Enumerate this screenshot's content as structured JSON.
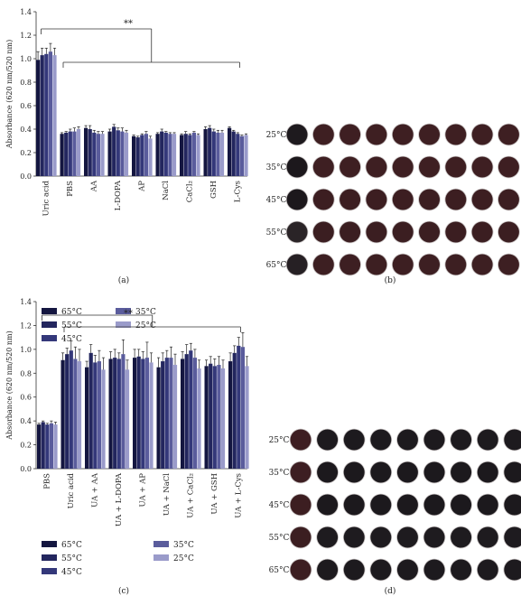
{
  "chart_data": [
    {
      "panel": "(a)",
      "type": "bar",
      "ylabel": "Absorbance (620 nm/520 nm)",
      "ylim": [
        0,
        1.4
      ],
      "yticks": [
        "0.0",
        "0.2",
        "0.4",
        "0.6",
        "0.8",
        "1.0",
        "1.2",
        "1.4"
      ],
      "categories": [
        "Uric acid",
        "PBS",
        "AA",
        "L-DOPA",
        "AP",
        "NaCl",
        "CaCl₂",
        "GSH",
        "L-Cys"
      ],
      "significance": "**",
      "series": [
        {
          "name": "65°C",
          "color": "#141640",
          "values": [
            0.99,
            0.36,
            0.41,
            0.38,
            0.34,
            0.36,
            0.35,
            0.4,
            0.41
          ],
          "errors": [
            0.07,
            0.01,
            0.02,
            0.02,
            0.01,
            0.01,
            0.01,
            0.02,
            0.01
          ]
        },
        {
          "name": "55°C",
          "color": "#23265e",
          "values": [
            1.03,
            0.37,
            0.4,
            0.42,
            0.33,
            0.38,
            0.36,
            0.41,
            0.38
          ],
          "errors": [
            0.06,
            0.01,
            0.03,
            0.02,
            0.01,
            0.02,
            0.02,
            0.02,
            0.01
          ]
        },
        {
          "name": "45°C",
          "color": "#34387a",
          "values": [
            1.04,
            0.38,
            0.37,
            0.39,
            0.35,
            0.37,
            0.35,
            0.38,
            0.36
          ],
          "errors": [
            0.05,
            0.02,
            0.02,
            0.02,
            0.01,
            0.01,
            0.01,
            0.02,
            0.01
          ]
        },
        {
          "name": "35°C",
          "color": "#5a5c9c",
          "values": [
            1.06,
            0.38,
            0.36,
            0.38,
            0.36,
            0.36,
            0.37,
            0.37,
            0.34
          ],
          "errors": [
            0.07,
            0.03,
            0.02,
            0.03,
            0.02,
            0.01,
            0.01,
            0.02,
            0.01
          ]
        },
        {
          "name": "25°C",
          "color": "#9a9bca",
          "values": [
            1.03,
            0.4,
            0.36,
            0.37,
            0.32,
            0.36,
            0.35,
            0.37,
            0.35
          ],
          "errors": [
            0.06,
            0.02,
            0.02,
            0.02,
            0.02,
            0.01,
            0.01,
            0.02,
            0.01
          ]
        }
      ]
    },
    {
      "panel": "(c)",
      "type": "bar",
      "ylabel": "Absorbance (620 nm/520 nm)",
      "ylim": [
        0,
        1.4
      ],
      "yticks": [
        "0.0",
        "0.2",
        "0.4",
        "0.6",
        "0.8",
        "1.0",
        "1.2",
        "1.4"
      ],
      "categories": [
        "PBS",
        "Uric acid",
        "UA + AA",
        "UA + L-DOPA",
        "UA + AP",
        "UA + NaCl",
        "UA + CaCl₂",
        "UA + GSH",
        "UA + L-Cys"
      ],
      "significance": "**",
      "series": [
        {
          "name": "65°C",
          "color": "#141640",
          "values": [
            0.37,
            0.91,
            0.85,
            0.92,
            0.93,
            0.85,
            0.92,
            0.86,
            0.9
          ],
          "errors": [
            0.01,
            0.06,
            0.05,
            0.06,
            0.07,
            0.08,
            0.06,
            0.05,
            0.07
          ]
        },
        {
          "name": "55°C",
          "color": "#23265e",
          "values": [
            0.39,
            0.96,
            0.97,
            0.93,
            0.94,
            0.9,
            0.96,
            0.88,
            0.97
          ],
          "errors": [
            0.01,
            0.05,
            0.07,
            0.07,
            0.06,
            0.07,
            0.08,
            0.06,
            0.06
          ]
        },
        {
          "name": "45°C",
          "color": "#34387a",
          "values": [
            0.37,
            0.99,
            0.89,
            0.92,
            0.92,
            0.93,
            0.99,
            0.86,
            1.03
          ],
          "errors": [
            0.01,
            0.08,
            0.06,
            0.05,
            0.06,
            0.06,
            0.06,
            0.06,
            0.07
          ]
        },
        {
          "name": "35°C",
          "color": "#5a5c9c",
          "values": [
            0.38,
            0.92,
            0.9,
            0.96,
            0.93,
            0.93,
            0.93,
            0.87,
            1.02
          ],
          "errors": [
            0.02,
            0.1,
            0.09,
            0.12,
            0.13,
            0.09,
            0.07,
            0.07,
            0.12
          ]
        },
        {
          "name": "25°C",
          "color": "#9a9bca",
          "values": [
            0.37,
            0.9,
            0.83,
            0.83,
            0.89,
            0.87,
            0.84,
            0.84,
            0.86
          ],
          "errors": [
            0.02,
            0.1,
            0.1,
            0.08,
            0.08,
            0.09,
            0.07,
            0.07,
            0.08
          ]
        }
      ]
    }
  ],
  "photo_panels": [
    {
      "panel": "(b)",
      "rows": [
        "25°C",
        "35°C",
        "45°C",
        "55°C",
        "65°C"
      ],
      "well_colors": [
        [
          "#1e1a1e",
          "#3e1f22",
          "#3e1f22",
          "#3e1f22",
          "#3e1f22",
          "#3e1f22",
          "#3e1f22",
          "#3e1f22",
          "#3e1f22"
        ],
        [
          "#1c181c",
          "#3e1f22",
          "#3e1f22",
          "#3e1f22",
          "#3e1f22",
          "#3e1f22",
          "#3e1f22",
          "#3e1f22",
          "#3e1f22"
        ],
        [
          "#1c181c",
          "#3c1e21",
          "#3c1e21",
          "#3c1e21",
          "#3c1e21",
          "#3c1e21",
          "#3c1e21",
          "#3c1e21",
          "#3c1e21"
        ],
        [
          "#2a2427",
          "#3b1e21",
          "#3b1e21",
          "#3b1e21",
          "#3b1e21",
          "#3b1e21",
          "#3b1e21",
          "#3b1e21",
          "#3b1e21"
        ],
        [
          "#262024",
          "#3d1f22",
          "#3d1f22",
          "#3d1f22",
          "#3d1f22",
          "#3d1f22",
          "#3d1f22",
          "#3d1f22",
          "#3d1f22"
        ]
      ]
    },
    {
      "panel": "(d)",
      "rows": [
        "25°C",
        "35°C",
        "45°C",
        "55°C",
        "65°C"
      ],
      "well_colors": [
        [
          "#3e1e22",
          "#1d1a1e",
          "#1d1a1e",
          "#1d1a1e",
          "#1d1a1e",
          "#1d1a1e",
          "#1d1a1e",
          "#1d1a1e",
          "#1d1a1e"
        ],
        [
          "#3d1e22",
          "#1c191d",
          "#1c191d",
          "#1c191d",
          "#1c191d",
          "#1c191d",
          "#1c191d",
          "#1c191d",
          "#1c191d"
        ],
        [
          "#3c1e21",
          "#1c191d",
          "#1c191d",
          "#1c191d",
          "#1c191d",
          "#1c191d",
          "#1c191d",
          "#1c191d",
          "#1c191d"
        ],
        [
          "#3b1e21",
          "#1e1b1f",
          "#1e1b1f",
          "#1e1b1f",
          "#1e1b1f",
          "#1e1b1f",
          "#1e1b1f",
          "#1e1b1f",
          "#1e1b1f"
        ],
        [
          "#3c1e21",
          "#1d1a1e",
          "#1d1a1e",
          "#1d1a1e",
          "#1d1a1e",
          "#1d1a1e",
          "#1d1a1e",
          "#1d1a1e",
          "#1d1a1e"
        ]
      ]
    }
  ]
}
